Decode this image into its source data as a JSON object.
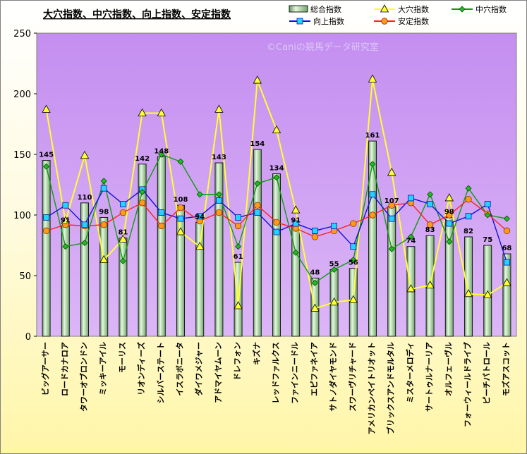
{
  "chart_data": {
    "type": "bar",
    "title": "大穴指数、中穴指数、向上指数、安定指数",
    "watermark": "©Caniの競馬データ研究室",
    "ylim": [
      0,
      250
    ],
    "yticks": [
      0,
      50,
      100,
      150,
      200,
      250
    ],
    "grid": false,
    "legend_position": "top-right",
    "categories": [
      "ビッグアーサー",
      "ロードカナロア",
      "タワーオブロンドン",
      "ミッキーアイル",
      "モーリス",
      "リオンディーズ",
      "シルバーステート",
      "イスラボニータ",
      "ダイワメジャー",
      "アドマイヤムーン",
      "ドレフォン",
      "キズナ",
      "レッドファルクス",
      "ファインニードル",
      "エピファネイア",
      "サトノダイヤモンド",
      "スワーヴリチャード",
      "アメリカンペイトリオット",
      "ブリックスアンドモルタル",
      "ミスターメロディ",
      "サートゥルナーリア",
      "オルフェーヴル",
      "フォーウィールドライブ",
      "ピーチパトロール",
      "モズアスコット"
    ],
    "series": [
      {
        "name": "総合指数",
        "type": "bar",
        "color": "#a7d9a2",
        "values": [
          145,
          91,
          110,
          98,
          81,
          142,
          148,
          108,
          94,
          143,
          61,
          154,
          134,
          91,
          48,
          55,
          56,
          161,
          107,
          74,
          83,
          98,
          82,
          75,
          68
        ]
      },
      {
        "name": "大穴指数",
        "type": "line",
        "color": "#ffff33",
        "marker": "triangle",
        "values": [
          187,
          95,
          149,
          63,
          80,
          184,
          184,
          86,
          74,
          187,
          25,
          211,
          170,
          104,
          23,
          28,
          30,
          212,
          135,
          39,
          42,
          114,
          35,
          34,
          44
        ]
      },
      {
        "name": "中穴指数",
        "type": "line",
        "color": "#0d9d0d",
        "marker": "diamond",
        "values": [
          140,
          74,
          77,
          128,
          62,
          119,
          150,
          144,
          117,
          117,
          74,
          126,
          131,
          69,
          44,
          55,
          63,
          142,
          72,
          82,
          117,
          78,
          122,
          100,
          97
        ]
      },
      {
        "name": "向上指数",
        "type": "line",
        "color": "#1010dd",
        "marker": "square",
        "values": [
          98,
          108,
          92,
          122,
          109,
          121,
          102,
          97,
          99,
          112,
          98,
          102,
          86,
          93,
          87,
          91,
          74,
          117,
          97,
          114,
          109,
          93,
          99,
          109,
          61
        ]
      },
      {
        "name": "安定指数",
        "type": "line",
        "color": "#ff2020",
        "marker": "circle",
        "values": [
          87,
          92,
          91,
          92,
          102,
          110,
          91,
          106,
          95,
          102,
          91,
          108,
          94,
          89,
          82,
          87,
          93,
          100,
          108,
          110,
          92,
          100,
          113,
          101,
          87
        ]
      }
    ]
  }
}
